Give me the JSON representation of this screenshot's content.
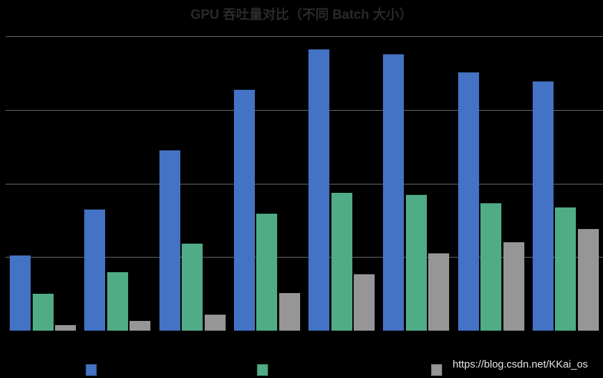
{
  "chart_data": {
    "type": "bar",
    "title": "GPU 吞吐量对比（不同 Batch 大小）",
    "xlabel": "",
    "ylabel": "",
    "categories": [
      "",
      "",
      "",
      "",
      "",
      "",
      "",
      ""
    ],
    "series": [
      {
        "name": "",
        "color": "#4472c4",
        "values": [
          1.02,
          1.65,
          2.45,
          3.27,
          3.82,
          3.75,
          3.51,
          3.39
        ]
      },
      {
        "name": "",
        "color": "#4fac86",
        "values": [
          0.5,
          0.79,
          1.18,
          1.59,
          1.87,
          1.84,
          1.73,
          1.67
        ]
      },
      {
        "name": "",
        "color": "#969696",
        "values": [
          0.08,
          0.13,
          0.22,
          0.51,
          0.77,
          1.05,
          1.2,
          1.38
        ]
      }
    ],
    "ylim": [
      0,
      4
    ],
    "yticks": [
      1,
      2,
      3,
      4
    ],
    "grid": true,
    "legend_position": "bottom",
    "note": "Axis tick labels and category labels are not visible (rendered black on black); values are in gridline units."
  },
  "watermark": "https://blog.csdn.net/KKai_os"
}
